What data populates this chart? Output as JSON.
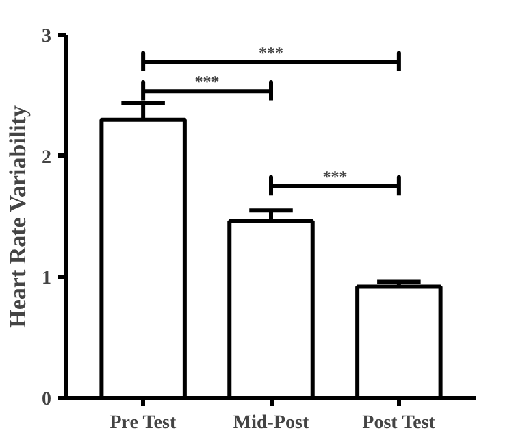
{
  "chart_data": {
    "type": "bar",
    "ylabel": "Heart Rate Variability",
    "categories": [
      "Pre Test",
      "Mid-Post",
      "Post Test"
    ],
    "values": [
      2.3,
      1.46,
      0.92
    ],
    "errors": [
      0.14,
      0.09,
      0.04
    ],
    "color": "#ffffff",
    "ylim": [
      0,
      3
    ],
    "yticks": [
      0,
      1,
      2,
      3
    ],
    "grid": false,
    "annotations": [
      "***",
      "***",
      "***"
    ]
  }
}
